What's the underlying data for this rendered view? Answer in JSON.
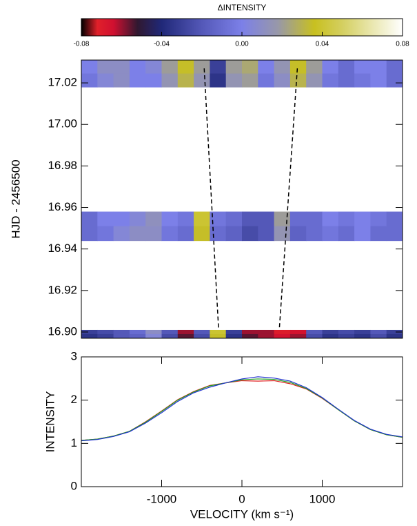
{
  "chart_data": [
    {
      "type": "colorbar",
      "title": "ΔINTENSITY",
      "xlim": [
        -0.08,
        0.08
      ],
      "xticks": [
        -0.08,
        -0.04,
        {
          "value": 0,
          "label": "0.00"
        },
        0.04,
        0.08
      ],
      "colormap": [
        [
          -0.08,
          "#000000"
        ],
        [
          -0.072,
          "#e0202a"
        ],
        [
          -0.064,
          "#d01030"
        ],
        [
          -0.052,
          "#301830"
        ],
        [
          -0.04,
          "#202878"
        ],
        [
          -0.02,
          "#5458b8"
        ],
        [
          0,
          "#7c80e8"
        ],
        [
          0.018,
          "#9898a8"
        ],
        [
          0.036,
          "#c8c020"
        ],
        [
          0.05,
          "#d4cf60"
        ],
        [
          0.08,
          "#ffffff"
        ]
      ]
    },
    {
      "type": "heatmap",
      "ylabel": "HJD - 2456500",
      "xlim": [
        -2000,
        2000
      ],
      "ylim": [
        16.897,
        17.031
      ],
      "yticks": [
        {
          "value": 16.9,
          "label": "16.90"
        },
        16.92,
        16.94,
        16.96,
        16.98,
        {
          "value": 17,
          "label": "17.00"
        },
        17.02
      ],
      "columns": [
        -1900,
        -1700,
        -1500,
        -1300,
        -1100,
        -900,
        -700,
        -500,
        -300,
        -100,
        100,
        300,
        500,
        700,
        900,
        1100,
        1300,
        1500,
        1700,
        1900
      ],
      "bands": [
        {
          "start": 17.018,
          "end": 17.031,
          "rows": [
            [
              0,
              0.01,
              0.01,
              0,
              0.005,
              0.02,
              0.035,
              0.02,
              -0.03,
              0.02,
              0.025,
              0,
              0.015,
              0.035,
              0.02,
              0,
              -0.01,
              0,
              0,
              -0.01
            ],
            [
              -0.005,
              0.005,
              0.01,
              0,
              0,
              0.015,
              0.03,
              0.015,
              -0.035,
              0.015,
              0.02,
              -0.005,
              0.01,
              0.03,
              0.015,
              -0.005,
              -0.01,
              -0.005,
              0,
              -0.01
            ]
          ]
        },
        {
          "start": 16.944,
          "end": 16.958,
          "rows": [
            [
              -0.01,
              0,
              0,
              0.005,
              0.012,
              0,
              -0.005,
              0.04,
              -0.005,
              -0.01,
              -0.02,
              -0.02,
              0.02,
              -0.01,
              -0.01,
              0,
              -0.005,
              0,
              -0.005,
              -0.01
            ],
            [
              -0.01,
              -0.005,
              0.005,
              0.01,
              0.01,
              -0.005,
              -0.01,
              0.035,
              -0.01,
              -0.015,
              -0.025,
              -0.02,
              0.015,
              -0.015,
              -0.01,
              -0.005,
              -0.01,
              0,
              -0.01,
              -0.01
            ]
          ]
        },
        {
          "start": 16.897,
          "end": 16.901,
          "rows": [
            [
              -0.03,
              -0.025,
              -0.02,
              -0.01,
              0.01,
              -0.02,
              -0.06,
              -0.02,
              0.04,
              -0.03,
              -0.06,
              -0.06,
              -0.07,
              -0.065,
              -0.02,
              -0.03,
              -0.025,
              -0.03,
              -0.02,
              -0.03
            ],
            [
              -0.035,
              -0.03,
              -0.02,
              -0.015,
              0.005,
              -0.025,
              -0.055,
              -0.025,
              0.035,
              -0.035,
              -0.055,
              -0.06,
              -0.065,
              -0.06,
              -0.025,
              -0.035,
              -0.03,
              -0.035,
              -0.025,
              -0.035
            ]
          ]
        }
      ],
      "guides": [
        {
          "x": [
            -470,
            -290
          ],
          "y": [
            17.027,
            16.901
          ]
        },
        {
          "x": [
            690,
            465
          ],
          "y": [
            17.027,
            16.901
          ]
        }
      ]
    },
    {
      "type": "line",
      "xlabel": "VELOCITY (km s⁻¹)",
      "ylabel": "INTENSITY",
      "xlim": [
        -2000,
        2000
      ],
      "ylim": [
        0,
        3
      ],
      "xticks": [
        -1000,
        0,
        1000
      ],
      "yticks": [
        0,
        1,
        2,
        3
      ],
      "x": [
        -2000,
        -1800,
        -1600,
        -1400,
        -1200,
        -1000,
        -800,
        -600,
        -400,
        -200,
        0,
        200,
        400,
        600,
        800,
        1000,
        1200,
        1400,
        1600,
        1800,
        2000
      ],
      "series": [
        {
          "name": "red",
          "color": "#e02020",
          "values": [
            1.07,
            1.1,
            1.17,
            1.28,
            1.5,
            1.75,
            2.01,
            2.2,
            2.34,
            2.4,
            2.45,
            2.44,
            2.45,
            2.38,
            2.26,
            2.04,
            1.78,
            1.52,
            1.32,
            1.2,
            1.14
          ]
        },
        {
          "name": "green",
          "color": "#20a020",
          "values": [
            1.07,
            1.1,
            1.17,
            1.28,
            1.49,
            1.74,
            2.0,
            2.19,
            2.33,
            2.4,
            2.47,
            2.49,
            2.48,
            2.41,
            2.27,
            2.05,
            1.78,
            1.52,
            1.32,
            1.2,
            1.14
          ]
        },
        {
          "name": "blue",
          "color": "#2030d0",
          "values": [
            1.06,
            1.09,
            1.16,
            1.27,
            1.47,
            1.71,
            1.97,
            2.17,
            2.3,
            2.4,
            2.49,
            2.54,
            2.51,
            2.44,
            2.29,
            2.06,
            1.79,
            1.53,
            1.33,
            1.21,
            1.15
          ]
        }
      ]
    }
  ]
}
